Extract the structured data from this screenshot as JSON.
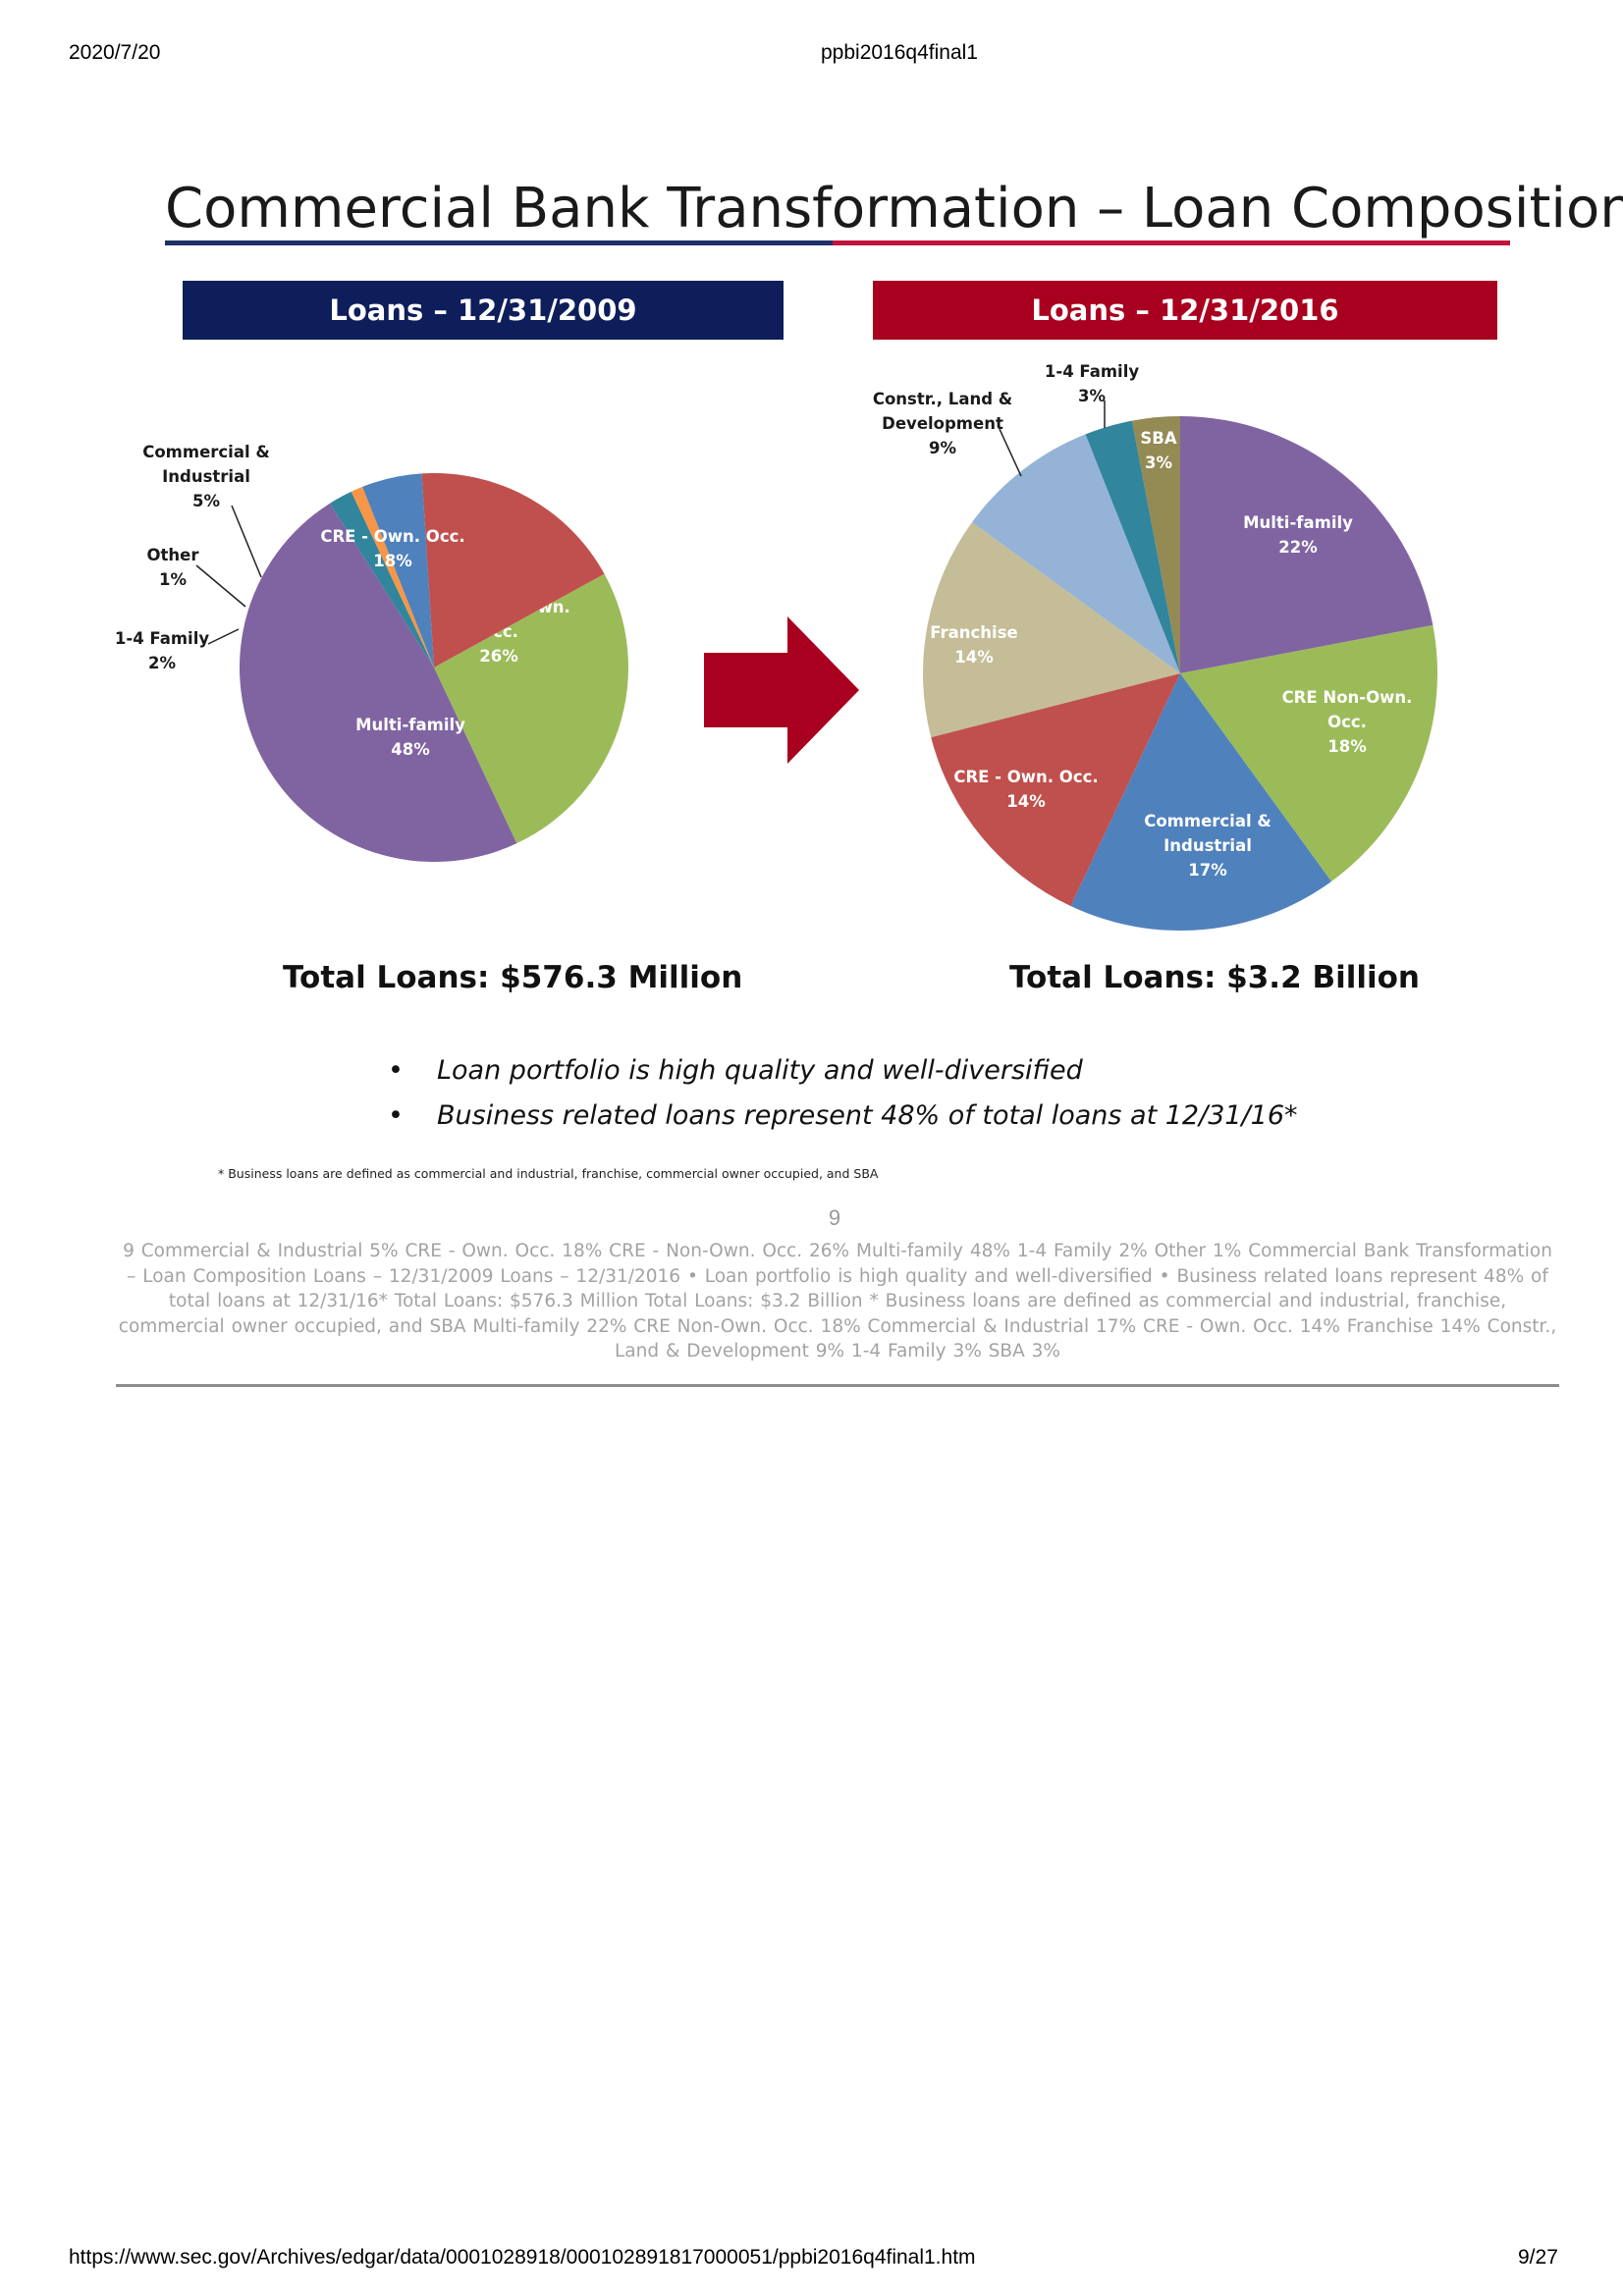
{
  "browser": {
    "date": "2020/7/20",
    "doc_title": "ppbi2016q4final1",
    "url": "https://www.sec.gov/Archives/edgar/data/0001028918/000102891817000051/ppbi2016q4final1.htm",
    "page": "9/27"
  },
  "slide": {
    "title": "Commercial Bank Transformation – Loan Composition",
    "banner_2009": "Loans – 12/31/2009",
    "banner_2016": "Loans – 12/31/2016",
    "total_2009": "Total Loans: $576.3 Million",
    "total_2016": "Total Loans: $3.2 Billion",
    "bullets": [
      "Loan portfolio is high quality and well-diversified",
      "Business related loans represent 48% of total loans at 12/31/16*"
    ],
    "bullet_glyph": "•",
    "footnote": "*  Business loans are defined as commercial and industrial, franchise, commercial owner occupied, and SBA",
    "number": "9",
    "text_layer": "9  Commercial &  Industrial  5%  CRE - Own. Occ.  18%  CRE - Non-Own.  Occ.  26%  Multi-family  48%  1-4 Family  2%  Other  1%  Commercial Bank Transformation – Loan Composition  Loans – 12/31/2009 Loans – 12/31/2016  • Loan portfolio is high quality and well-diversified  • Business related loans represent 48% of total loans at 12/31/16*  Total Loans: $576.3 Million Total Loans: $3.2 Billion  * Business loans are defined as commercial and industrial, franchise, commercial owner occupied, and SBA  Multi-family  22%  CRE Non-Own.  Occ.  18%  Commercial &  Industrial  17%  CRE - Own. Occ.  14%  Franchise  14%  Constr., Land &  Development  9%  1-4 Family  3%  SBA  3%"
  },
  "chart_data": [
    {
      "type": "pie",
      "name": "2009",
      "slices": [
        {
          "label": [
            "CRE - Non-Own.",
            "Occ."
          ],
          "value": 26,
          "display": "26%",
          "color": "#9bbb59"
        },
        {
          "label": [
            "Multi-family"
          ],
          "value": 48,
          "display": "48%",
          "color": "#8064a2"
        },
        {
          "label": [
            "1-4 Family"
          ],
          "value": 2,
          "display": "2%",
          "color": "#31859c"
        },
        {
          "label": [
            "Other"
          ],
          "value": 1,
          "display": "1%",
          "color": "#f79646"
        },
        {
          "label": [
            "Commercial &",
            "Industrial"
          ],
          "value": 5,
          "display": "5%",
          "color": "#4f81bd"
        },
        {
          "label": [
            "CRE - Own. Occ."
          ],
          "value": 18,
          "display": "18%",
          "color": "#c0504d"
        }
      ]
    },
    {
      "type": "pie",
      "name": "2016",
      "slices": [
        {
          "label": [
            "Multi-family"
          ],
          "value": 22,
          "display": "22%",
          "color": "#8064a2"
        },
        {
          "label": [
            "CRE Non-Own.",
            "Occ."
          ],
          "value": 18,
          "display": "18%",
          "color": "#9bbb59"
        },
        {
          "label": [
            "Commercial &",
            "Industrial"
          ],
          "value": 17,
          "display": "17%",
          "color": "#4f81bd"
        },
        {
          "label": [
            "CRE - Own. Occ."
          ],
          "value": 14,
          "display": "14%",
          "color": "#c0504d"
        },
        {
          "label": [
            "Franchise"
          ],
          "value": 14,
          "display": "14%",
          "color": "#c4bd97"
        },
        {
          "label": [
            "Constr., Land &",
            "Development"
          ],
          "value": 9,
          "display": "9%",
          "color": "#95b3d7"
        },
        {
          "label": [
            "1-4 Family"
          ],
          "value": 3,
          "display": "3%",
          "color": "#31859c"
        },
        {
          "label": [
            "SBA"
          ],
          "value": 3,
          "display": "3%",
          "color": "#948a54"
        }
      ]
    }
  ],
  "colors": {
    "arrow": "#a8001e",
    "banner_2009": "#0e1e5b",
    "banner_2016": "#a8001e"
  }
}
